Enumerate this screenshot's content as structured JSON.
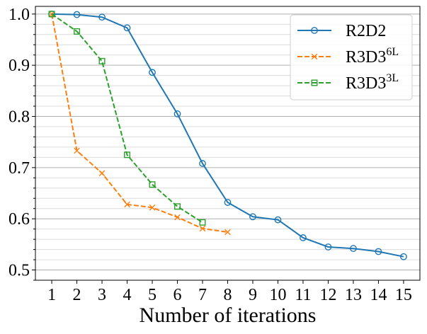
{
  "chart_data": {
    "type": "line",
    "title": "",
    "xlabel": "Number of iterations",
    "ylabel": "",
    "xlim": [
      0.35,
      15.65
    ],
    "ylim": [
      0.48,
      1.015
    ],
    "x_ticks": [
      1,
      2,
      3,
      4,
      5,
      6,
      7,
      8,
      9,
      10,
      11,
      12,
      13,
      14,
      15
    ],
    "x_tick_labels": [
      "1",
      "2",
      "3",
      "4",
      "5",
      "6",
      "7",
      "8",
      "9",
      "10",
      "11",
      "12",
      "13",
      "14",
      "15"
    ],
    "y_ticks": [
      0.5,
      0.6,
      0.7,
      0.8,
      0.9,
      1.0
    ],
    "y_tick_labels": [
      "0.5",
      "0.6",
      "0.7",
      "0.8",
      "0.9",
      "1.0"
    ],
    "y_minor_step": 0.02,
    "grid": true,
    "legend_position": "top-right",
    "series": [
      {
        "name": "R2D2",
        "label_base": "R2D2",
        "label_sup": "",
        "color": "#1f77b4",
        "linestyle": "solid",
        "marker": "circle",
        "x": [
          1,
          2,
          3,
          4,
          5,
          6,
          7,
          8,
          9,
          10,
          11,
          12,
          13,
          14,
          15
        ],
        "values": [
          1.0,
          0.999,
          0.994,
          0.973,
          0.886,
          0.805,
          0.708,
          0.632,
          0.604,
          0.598,
          0.563,
          0.545,
          0.542,
          0.536,
          0.526
        ]
      },
      {
        "name": "R3D3 6L",
        "label_base": "R3D3",
        "label_sup": "6L",
        "color": "#ff7f0e",
        "linestyle": "dashed",
        "marker": "x",
        "x": [
          1,
          2,
          3,
          4,
          5,
          6,
          7,
          8
        ],
        "values": [
          1.0,
          0.733,
          0.689,
          0.628,
          0.622,
          0.603,
          0.581,
          0.574
        ]
      },
      {
        "name": "R3D3 3L",
        "label_base": "R3D3",
        "label_sup": "3L",
        "color": "#2ca02c",
        "linestyle": "dashed",
        "marker": "square",
        "x": [
          1,
          2,
          3,
          4,
          5,
          6,
          7
        ],
        "values": [
          1.0,
          0.966,
          0.908,
          0.725,
          0.667,
          0.624,
          0.593
        ]
      }
    ]
  }
}
